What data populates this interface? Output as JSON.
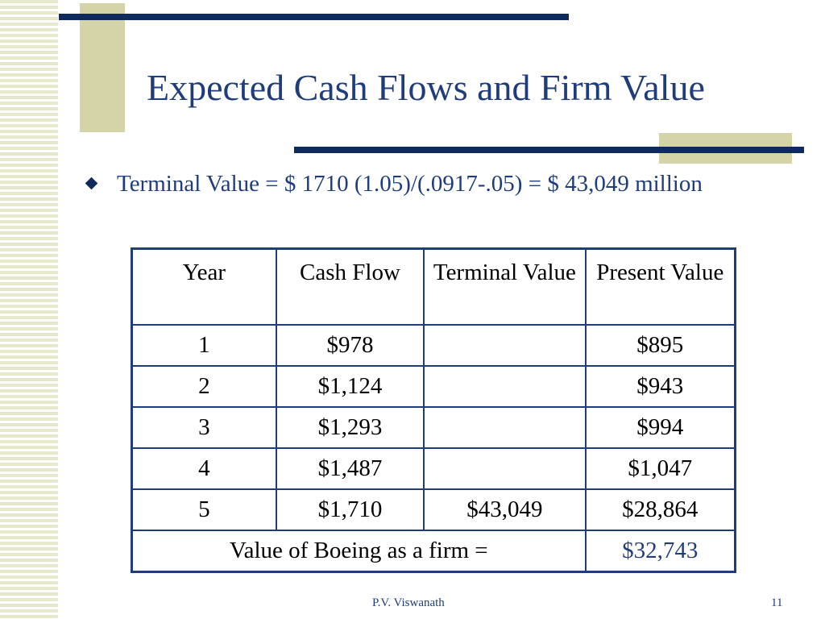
{
  "slide": {
    "title": "Expected Cash Flows and Firm Value",
    "bullet": "Terminal Value = $ 1710 (1.05)/(.0917-.05) = $ 43,049 million"
  },
  "table": {
    "headers": {
      "year": "Year",
      "cash_flow": "Cash Flow",
      "terminal_value": "Terminal Value",
      "present_value": "Present Value"
    },
    "rows": [
      {
        "year": "1",
        "cash_flow": "$978",
        "terminal_value": "",
        "present_value": "$895"
      },
      {
        "year": "2",
        "cash_flow": "$1,124",
        "terminal_value": "",
        "present_value": "$943"
      },
      {
        "year": "3",
        "cash_flow": "$1,293",
        "terminal_value": "",
        "present_value": "$994"
      },
      {
        "year": "4",
        "cash_flow": "$1,487",
        "terminal_value": "",
        "present_value": "$1,047"
      },
      {
        "year": "5",
        "cash_flow": "$1,710",
        "terminal_value": "$43,049",
        "present_value": "$28,864"
      }
    ],
    "total_label": "Value of Boeing as a firm =",
    "total_value": "$32,743"
  },
  "footer": {
    "author": "P.V. Viswanath",
    "page_number": "11"
  },
  "colors": {
    "title_text": "#1f3d7a",
    "rule_navy": "#0f2a5c",
    "accent_khaki": "#d4d4a8",
    "stripe": "#e8e8cc"
  },
  "icons": {
    "bullet": "diamond-bullet-icon"
  }
}
